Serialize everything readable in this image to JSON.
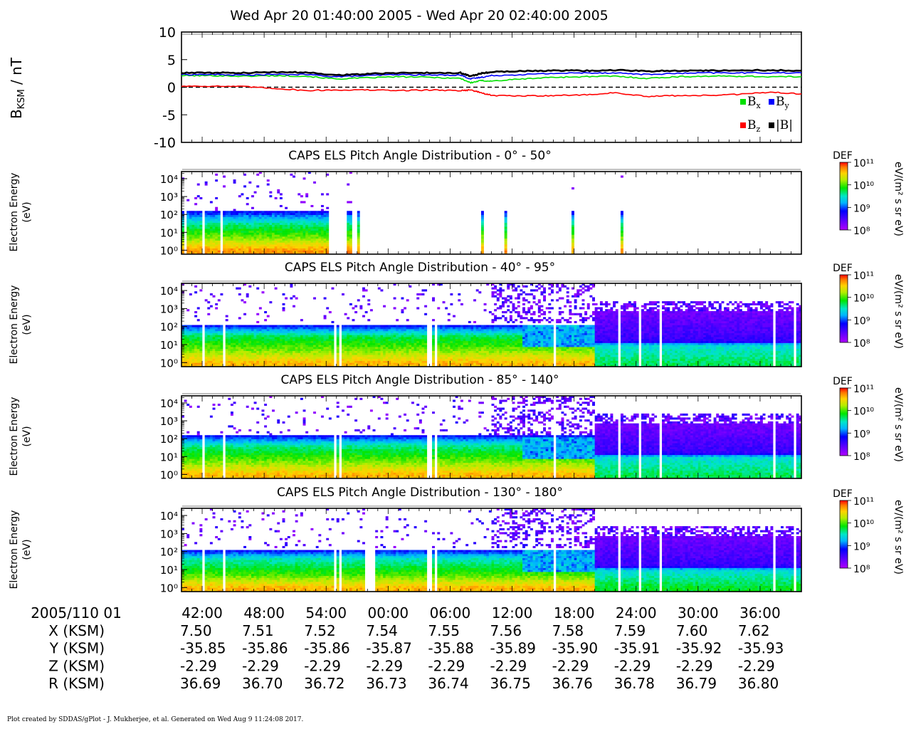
{
  "plot_title": "Wed Apr 20 01:40:00 2005 - Wed Apr 20 02:40:00 2005",
  "footer": "Plot created by SDDAS/gPlot - J. Mukherjee, et al.  Generated on Wed Aug 9 11:24:08 2017.",
  "colorbar": {
    "label": "DEF",
    "units": "eV/(m² s sr eV)",
    "ticks": [
      "10¹¹",
      "10¹⁰",
      "10⁹",
      "10⁸"
    ]
  },
  "time_axis": {
    "date_label": "2005/110 01",
    "ticks": [
      "42:00",
      "48:00",
      "54:00",
      "00:00",
      "06:00",
      "12:00",
      "18:00",
      "24:00",
      "30:00",
      "36:00"
    ]
  },
  "ephemeris": [
    {
      "label": "X (KSM)",
      "values": [
        "7.50",
        "7.51",
        "7.52",
        "7.54",
        "7.55",
        "7.56",
        "7.58",
        "7.59",
        "7.60",
        "7.62"
      ]
    },
    {
      "label": "Y (KSM)",
      "values": [
        "-35.85",
        "-35.86",
        "-35.86",
        "-35.87",
        "-35.88",
        "-35.89",
        "-35.90",
        "-35.91",
        "-35.92",
        "-35.93"
      ]
    },
    {
      "label": "Z (KSM)",
      "values": [
        "-2.29",
        "-2.29",
        "-2.29",
        "-2.29",
        "-2.29",
        "-2.29",
        "-2.29",
        "-2.29",
        "-2.29",
        "-2.29"
      ]
    },
    {
      "label": "R (KSM)",
      "values": [
        "36.69",
        "36.70",
        "36.72",
        "36.73",
        "36.74",
        "36.75",
        "36.76",
        "36.78",
        "36.79",
        "36.80"
      ]
    }
  ],
  "chart_data": [
    {
      "type": "line",
      "ylabel": "B",
      "ylabel_sub": "KSM",
      "ylabel_unit": " / nT",
      "ylim": [
        -10,
        10
      ],
      "yticks": [
        10,
        5,
        0,
        -5,
        -10
      ],
      "xlim_minutes": [
        0,
        60
      ],
      "zero_line": "dashed",
      "legend": [
        {
          "name": "B",
          "sub": "x",
          "color": "#00e000"
        },
        {
          "name": "B",
          "sub": "y",
          "color": "#0000ff"
        },
        {
          "name": "B",
          "sub": "z",
          "color": "#ff0000"
        },
        {
          "name": "|B|",
          "sub": "",
          "color": "#000000"
        }
      ],
      "series": [
        {
          "key": "Bx",
          "color": "#00e000",
          "x": [
            0,
            3,
            6,
            9,
            12,
            15,
            18,
            21,
            24,
            27,
            28,
            29,
            30,
            33,
            36,
            39,
            42,
            45,
            48,
            51,
            54,
            57,
            60
          ],
          "y": [
            2.1,
            2.1,
            2.0,
            2.1,
            2.0,
            1.5,
            1.7,
            1.9,
            1.8,
            1.6,
            0.8,
            1.2,
            1.1,
            1.5,
            1.8,
            1.9,
            2.0,
            1.6,
            1.9,
            2.0,
            2.0,
            1.9,
            1.9
          ]
        },
        {
          "key": "By",
          "color": "#0000ff",
          "x": [
            0,
            3,
            6,
            9,
            12,
            15,
            18,
            21,
            24,
            27,
            28,
            29,
            30,
            33,
            36,
            39,
            42,
            45,
            48,
            51,
            54,
            57,
            60
          ],
          "y": [
            2.3,
            2.3,
            2.2,
            2.3,
            2.3,
            1.9,
            2.1,
            2.3,
            2.2,
            2.2,
            1.5,
            1.8,
            2.1,
            2.3,
            2.5,
            2.6,
            2.6,
            2.3,
            2.5,
            2.6,
            2.6,
            2.6,
            2.6
          ]
        },
        {
          "key": "Bz",
          "color": "#ff0000",
          "x": [
            0,
            3,
            6,
            9,
            12,
            15,
            18,
            21,
            24,
            27,
            28,
            29,
            30,
            33,
            36,
            39,
            42,
            45,
            48,
            51,
            54,
            57,
            60
          ],
          "y": [
            0.2,
            0.2,
            0.1,
            -0.2,
            -0.6,
            -0.5,
            -0.5,
            -0.6,
            -0.5,
            -0.6,
            -0.5,
            -1.0,
            -1.5,
            -1.6,
            -1.5,
            -1.4,
            -1.0,
            -1.7,
            -1.5,
            -1.5,
            -1.3,
            -0.9,
            -1.2
          ]
        },
        {
          "key": "Bmag",
          "color": "#000000",
          "x": [
            0,
            3,
            6,
            9,
            12,
            15,
            18,
            21,
            24,
            27,
            28,
            29,
            30,
            33,
            36,
            39,
            42,
            45,
            48,
            51,
            54,
            57,
            60
          ],
          "y": [
            2.6,
            2.6,
            2.6,
            2.7,
            2.7,
            2.2,
            2.4,
            2.6,
            2.6,
            2.6,
            2.0,
            2.5,
            2.8,
            2.9,
            3.0,
            3.0,
            3.1,
            2.9,
            3.0,
            3.0,
            3.0,
            3.1,
            3.0
          ]
        }
      ]
    },
    {
      "type": "heatmap",
      "title": "CAPS ELS Pitch Angle Distribution - 0° - 50°",
      "ylabel": "Electron Energy",
      "ylabel2": "(eV)",
      "yscale": "log",
      "ylim": [
        0.6,
        25000
      ],
      "yticks": [
        "10⁰",
        "10¹",
        "10²",
        "10³",
        "10⁴"
      ],
      "color_scale": "log DEF 1e8 - 1e11",
      "coverage_minutes": [
        [
          0,
          14.6
        ],
        [
          16.1,
          16.4
        ],
        [
          17.0,
          17.3
        ],
        [
          29.1,
          29.3
        ],
        [
          31.2,
          31.4
        ],
        [
          37.7,
          37.9
        ],
        [
          42.4,
          42.8
        ]
      ],
      "energy_profile": [
        {
          "e": 1,
          "level": 10.7
        },
        {
          "e": 5,
          "level": 10.1
        },
        {
          "e": 30,
          "level": 9.6
        },
        {
          "e": 150,
          "level": 8.8
        }
      ],
      "gaps_minutes": [
        0.4,
        2.1,
        3.9,
        14.5
      ]
    },
    {
      "type": "heatmap",
      "title": "CAPS ELS Pitch Angle Distribution - 40° - 95°",
      "ylabel": "Electron Energy",
      "ylabel2": "(eV)",
      "yscale": "log",
      "ylim": [
        0.6,
        25000
      ],
      "yticks": [
        "10⁰",
        "10¹",
        "10²",
        "10³",
        "10⁴"
      ],
      "color_scale": "log DEF 1e8 - 1e11",
      "population_shift_minute": 40,
      "energy_profile_before": [
        {
          "e": 1,
          "level": 10.6
        },
        {
          "e": 5,
          "level": 10.1
        },
        {
          "e": 30,
          "level": 9.7
        },
        {
          "e": 120,
          "level": 8.8
        }
      ],
      "energy_profile_after": [
        {
          "e": 1,
          "level": 9.7
        },
        {
          "e": 10,
          "level": 9.4
        },
        {
          "e": 15,
          "level": 8.6
        },
        {
          "e": 800,
          "level": 8.3
        }
      ],
      "gaps_minutes": [
        2.1,
        4.1,
        14.9,
        15.4,
        24.0,
        24.6,
        36.1,
        42.3,
        44.3,
        46.3,
        57.3,
        59.3
      ]
    },
    {
      "type": "heatmap",
      "title": "CAPS ELS Pitch Angle Distribution - 85° - 140°",
      "ylabel": "Electron Energy",
      "ylabel2": "(eV)",
      "yscale": "log",
      "ylim": [
        0.6,
        25000
      ],
      "yticks": [
        "10⁰",
        "10¹",
        "10²",
        "10³",
        "10⁴"
      ],
      "color_scale": "log DEF 1e8 - 1e11",
      "population_shift_minute": 40,
      "energy_profile_before": [
        {
          "e": 1,
          "level": 10.6
        },
        {
          "e": 5,
          "level": 10.1
        },
        {
          "e": 40,
          "level": 9.6
        },
        {
          "e": 150,
          "level": 8.8
        }
      ],
      "energy_profile_after": [
        {
          "e": 1,
          "level": 9.7
        },
        {
          "e": 10,
          "level": 9.4
        },
        {
          "e": 15,
          "level": 8.6
        },
        {
          "e": 800,
          "level": 8.3
        }
      ],
      "gaps_minutes": [
        2.1,
        4.1,
        14.9,
        15.4,
        24.0,
        24.6,
        36.1,
        42.3,
        44.3,
        46.3,
        57.3,
        59.3
      ]
    },
    {
      "type": "heatmap",
      "title": "CAPS ELS Pitch Angle Distribution - 130° - 180°",
      "ylabel": "Electron Energy",
      "ylabel2": "(eV)",
      "yscale": "log",
      "ylim": [
        0.6,
        25000
      ],
      "yticks": [
        "10⁰",
        "10¹",
        "10²",
        "10³",
        "10⁴"
      ],
      "color_scale": "log DEF 1e8 - 1e11",
      "population_shift_minute": 40,
      "energy_profile_before": [
        {
          "e": 1,
          "level": 10.6
        },
        {
          "e": 5,
          "level": 10.0
        },
        {
          "e": 40,
          "level": 9.5
        },
        {
          "e": 120,
          "level": 8.8
        }
      ],
      "energy_profile_after": [
        {
          "e": 1,
          "level": 9.8
        },
        {
          "e": 10,
          "level": 9.4
        },
        {
          "e": 15,
          "level": 8.6
        },
        {
          "e": 800,
          "level": 8.3
        }
      ],
      "gaps_minutes": [
        2.1,
        4.1,
        14.9,
        15.4,
        18.0,
        18.5,
        24.0,
        24.6,
        36.1,
        42.3,
        44.3,
        46.3,
        57.3,
        59.3
      ]
    }
  ]
}
